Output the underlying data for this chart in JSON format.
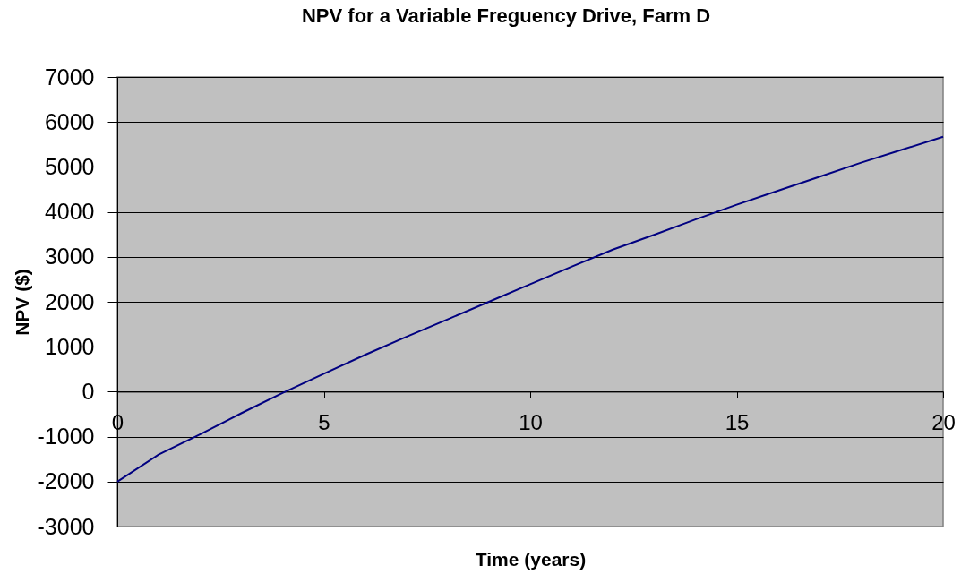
{
  "chart_data": {
    "type": "line",
    "title": "NPV for a Variable Freguency Drive, Farm D",
    "xlabel": "Time (years)",
    "ylabel": "NPV ($)",
    "x": [
      0,
      1,
      2,
      3,
      4,
      5,
      6,
      7,
      8,
      9,
      10,
      11,
      12,
      13,
      14,
      15,
      16,
      17,
      18,
      19,
      20
    ],
    "series": [
      {
        "color": "#000080",
        "values": [
          -2000,
          -1400,
          -950,
          -480,
          -30,
          400,
          820,
          1220,
          1610,
          2000,
          2390,
          2780,
          3160,
          3490,
          3830,
          4160,
          4470,
          4780,
          5090,
          5380,
          5670
        ]
      }
    ],
    "xlim": [
      0,
      20
    ],
    "xticks": [
      0,
      5,
      10,
      15,
      20
    ],
    "ylim": [
      -3000,
      7000
    ],
    "yticks": [
      -3000,
      -2000,
      -1000,
      0,
      1000,
      2000,
      3000,
      4000,
      5000,
      6000,
      7000
    ],
    "grid": "y",
    "line_style": "solid"
  }
}
